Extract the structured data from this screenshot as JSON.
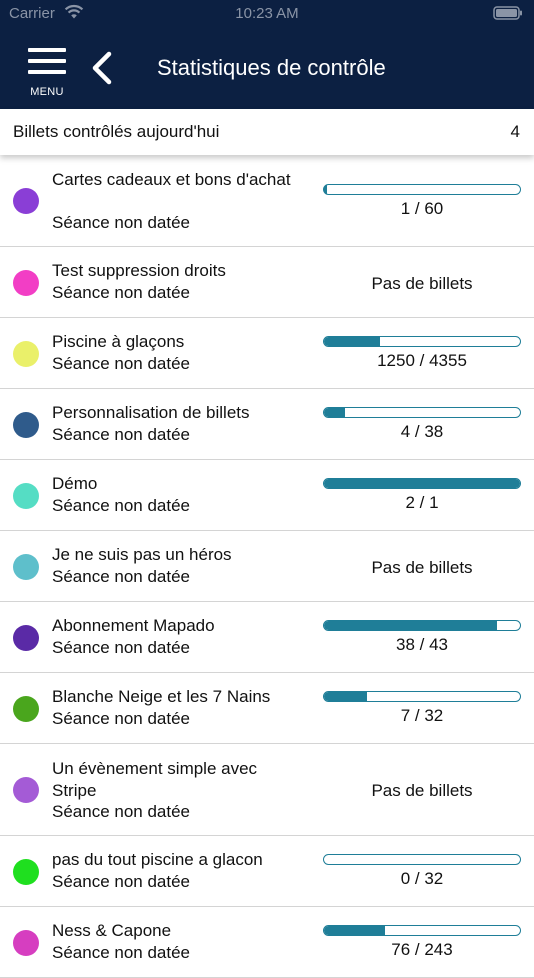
{
  "status_bar": {
    "carrier": "Carrier",
    "time": "10:23 AM"
  },
  "header": {
    "menu_label": "MENU",
    "title": "Statistiques de contrôle"
  },
  "summary": {
    "label": "Billets contrôlés aujourd'hui",
    "count": "4"
  },
  "events": [
    {
      "title": "Cartes cadeaux et bons d'achat",
      "subtitle": "Séance non datée",
      "color": "#8a3ed6",
      "count_text": "1 / 60",
      "progress": 0.017
    },
    {
      "title": "Test suppression droits",
      "subtitle": "Séance non datée",
      "color": "#f23ec5",
      "no_tickets": "Pas de billets"
    },
    {
      "title": "Piscine à glaçons",
      "subtitle": "Séance non datée",
      "color": "#eaf06a",
      "count_text": "1250 / 4355",
      "progress": 0.287
    },
    {
      "title": "Personnalisation de billets",
      "subtitle": "Séance non datée",
      "color": "#2f5b8b",
      "count_text": "4 / 38",
      "progress": 0.105
    },
    {
      "title": "Démo",
      "subtitle": "Séance non datée",
      "color": "#55ddc4",
      "count_text": "2 / 1",
      "progress": 1.0
    },
    {
      "title": "Je ne suis pas un héros",
      "subtitle": "Séance non datée",
      "color": "#5ebfcb",
      "no_tickets": "Pas de billets"
    },
    {
      "title": "Abonnement Mapado",
      "subtitle": "Séance non datée",
      "color": "#5a2aa6",
      "count_text": "38 / 43",
      "progress": 0.884
    },
    {
      "title": "Blanche Neige et les 7 Nains",
      "subtitle": "Séance non datée",
      "color": "#4aa61d",
      "count_text": "7 / 32",
      "progress": 0.219
    },
    {
      "title": "Un évènement simple avec Stripe",
      "subtitle": "Séance non datée",
      "color": "#a45bd6",
      "no_tickets": "Pas de billets"
    },
    {
      "title": "pas du tout piscine a glacon",
      "subtitle": "Séance non datée",
      "color": "#1fdf1f",
      "count_text": "0 / 32",
      "progress": 0.0
    },
    {
      "title": "Ness & Capone",
      "subtitle": "Séance non datée",
      "color": "#d63ec0",
      "count_text": "76 / 243",
      "progress": 0.313
    }
  ]
}
